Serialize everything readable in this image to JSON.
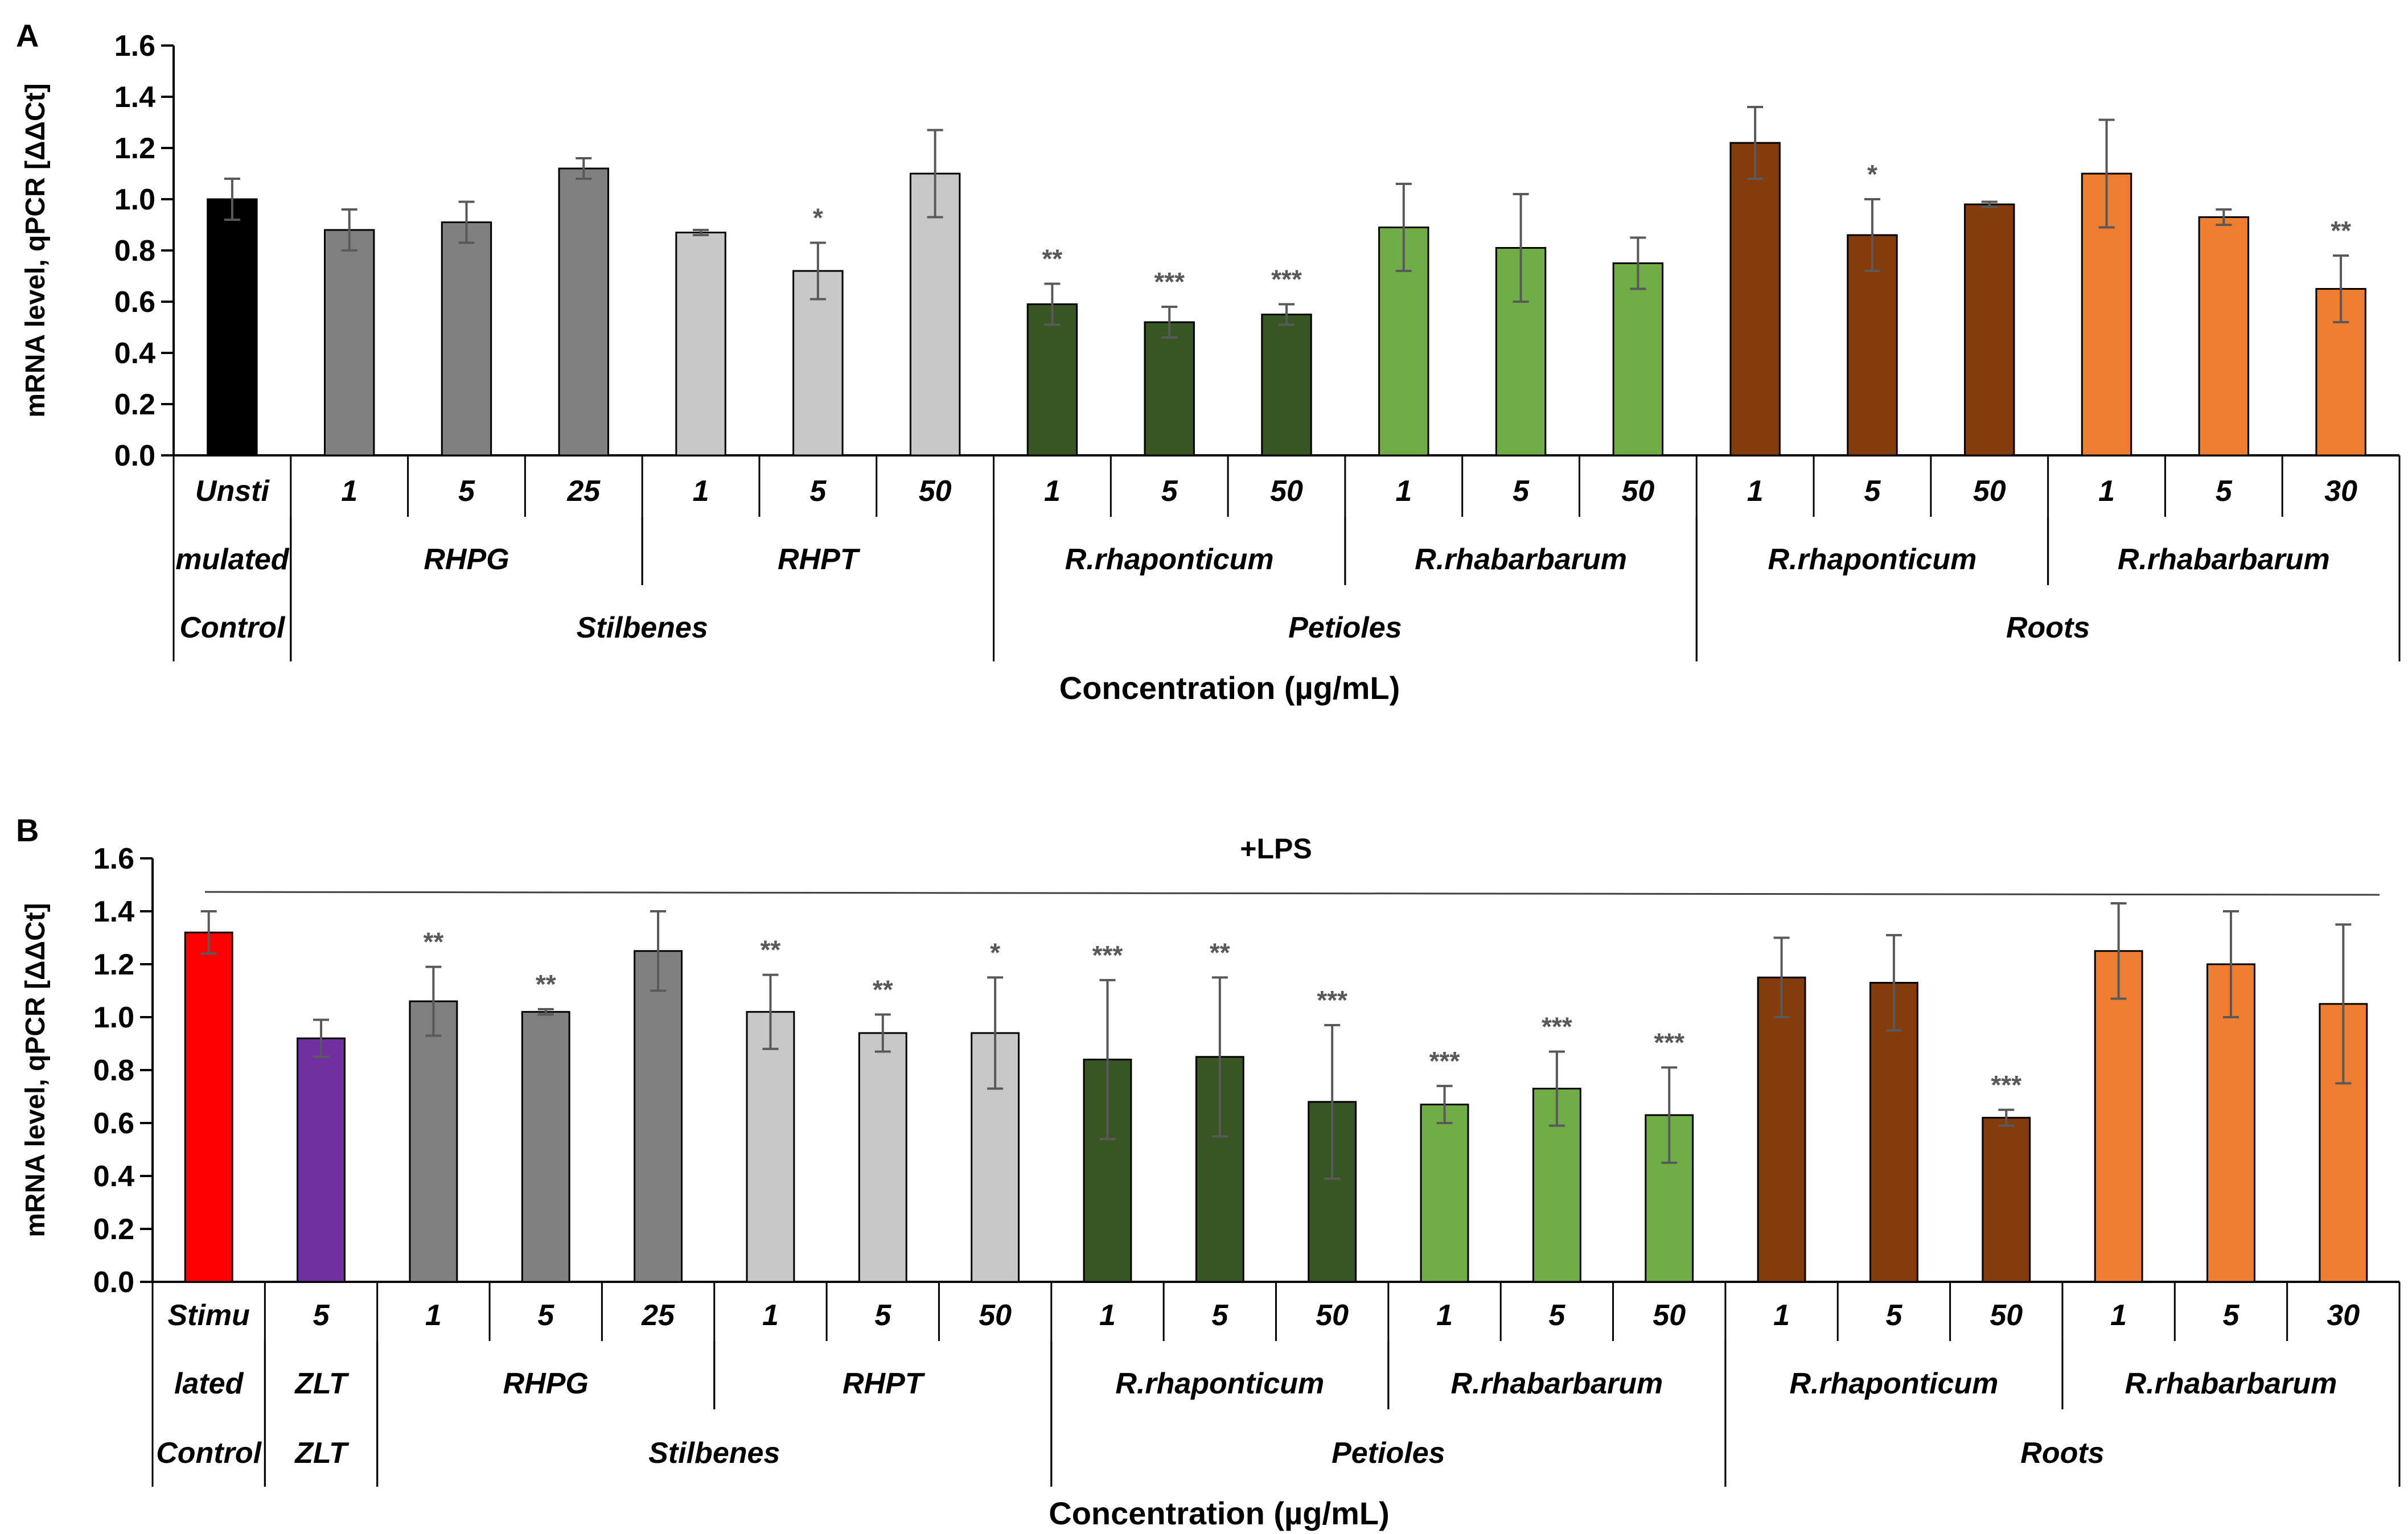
{
  "chart_data": [
    {
      "panel": "A",
      "type": "bar",
      "ylabel": "mRNA level, qPCR [ΔΔCt]",
      "xlabel": "Concentration (µg/mL)",
      "ylim": [
        0,
        1.6
      ],
      "yticks": [
        "0.0",
        "0.2",
        "0.4",
        "0.6",
        "0.8",
        "1.0",
        "1.2",
        "1.4",
        "1.6"
      ],
      "header": "",
      "bars": [
        {
          "label": "Unsti",
          "value": 1.0,
          "err": 0.08,
          "sig": "",
          "color": "#000000"
        },
        {
          "label": "1",
          "value": 0.88,
          "err": 0.08,
          "sig": "",
          "color": "#808080"
        },
        {
          "label": "5",
          "value": 0.91,
          "err": 0.08,
          "sig": "",
          "color": "#808080"
        },
        {
          "label": "25",
          "value": 1.12,
          "err": 0.04,
          "sig": "",
          "color": "#808080"
        },
        {
          "label": "1",
          "value": 0.87,
          "err": 0.01,
          "sig": "",
          "color": "#c8c8c8"
        },
        {
          "label": "5",
          "value": 0.72,
          "err": 0.11,
          "sig": "*",
          "color": "#c8c8c8"
        },
        {
          "label": "50",
          "value": 1.1,
          "err": 0.17,
          "sig": "",
          "color": "#c8c8c8"
        },
        {
          "label": "1",
          "value": 0.59,
          "err": 0.08,
          "sig": "**",
          "color": "#375623"
        },
        {
          "label": "5",
          "value": 0.52,
          "err": 0.06,
          "sig": "***",
          "color": "#375623"
        },
        {
          "label": "50",
          "value": 0.55,
          "err": 0.04,
          "sig": "***",
          "color": "#375623"
        },
        {
          "label": "1",
          "value": 0.89,
          "err": 0.17,
          "sig": "",
          "color": "#70ad47"
        },
        {
          "label": "5",
          "value": 0.81,
          "err": 0.21,
          "sig": "",
          "color": "#70ad47"
        },
        {
          "label": "50",
          "value": 0.75,
          "err": 0.1,
          "sig": "",
          "color": "#70ad47"
        },
        {
          "label": "1",
          "value": 1.22,
          "err": 0.14,
          "sig": "",
          "color": "#843c0c"
        },
        {
          "label": "5",
          "value": 0.86,
          "err": 0.14,
          "sig": "*",
          "color": "#843c0c"
        },
        {
          "label": "50",
          "value": 0.98,
          "err": 0.01,
          "sig": "",
          "color": "#843c0c"
        },
        {
          "label": "1",
          "value": 1.1,
          "err": 0.21,
          "sig": "",
          "color": "#ed7d31"
        },
        {
          "label": "5",
          "value": 0.93,
          "err": 0.03,
          "sig": "",
          "color": "#ed7d31"
        },
        {
          "label": "30",
          "value": 0.65,
          "err": 0.13,
          "sig": "**",
          "color": "#ed7d31"
        }
      ],
      "row2": [
        {
          "text": "mulated",
          "from": 0,
          "to": 1
        },
        {
          "text": "RHPG",
          "from": 1,
          "to": 4
        },
        {
          "text": "RHPT",
          "from": 4,
          "to": 7
        },
        {
          "text": "R.rhaponticum",
          "from": 7,
          "to": 10
        },
        {
          "text": "R.rhabarbarum",
          "from": 10,
          "to": 13
        },
        {
          "text": "R.rhaponticum",
          "from": 13,
          "to": 16
        },
        {
          "text": "R.rhabarbarum",
          "from": 16,
          "to": 19
        }
      ],
      "row3": [
        {
          "text": "Control",
          "from": 0,
          "to": 1
        },
        {
          "text": "Stilbenes",
          "from": 1,
          "to": 7
        },
        {
          "text": "Petioles",
          "from": 7,
          "to": 13
        },
        {
          "text": "Roots",
          "from": 13,
          "to": 19
        }
      ]
    },
    {
      "panel": "B",
      "type": "bar",
      "ylabel": "mRNA level, qPCR [ΔΔCt]",
      "xlabel": "Concentration (µg/mL)",
      "ylim": [
        0,
        1.6
      ],
      "yticks": [
        "0.0",
        "0.2",
        "0.4",
        "0.6",
        "0.8",
        "1.0",
        "1.2",
        "1.4",
        "1.6"
      ],
      "header": "+LPS",
      "bars": [
        {
          "label": "Stimu",
          "value": 1.32,
          "err": 0.08,
          "sig": "",
          "color": "#ff0000"
        },
        {
          "label": "5",
          "value": 0.92,
          "err": 0.07,
          "sig": "",
          "color": "#7030a0"
        },
        {
          "label": "1",
          "value": 1.06,
          "err": 0.13,
          "sig": "**",
          "color": "#808080"
        },
        {
          "label": "5",
          "value": 1.02,
          "err": 0.01,
          "sig": "**",
          "color": "#808080"
        },
        {
          "label": "25",
          "value": 1.25,
          "err": 0.15,
          "sig": "",
          "color": "#808080"
        },
        {
          "label": "1",
          "value": 1.02,
          "err": 0.14,
          "sig": "**",
          "color": "#c8c8c8"
        },
        {
          "label": "5",
          "value": 0.94,
          "err": 0.07,
          "sig": "**",
          "color": "#c8c8c8"
        },
        {
          "label": "50",
          "value": 0.94,
          "err": 0.21,
          "sig": "*",
          "color": "#c8c8c8"
        },
        {
          "label": "1",
          "value": 0.84,
          "err": 0.3,
          "sig": "***",
          "color": "#375623"
        },
        {
          "label": "5",
          "value": 0.85,
          "err": 0.3,
          "sig": "**",
          "color": "#375623"
        },
        {
          "label": "50",
          "value": 0.68,
          "err": 0.29,
          "sig": "***",
          "color": "#375623"
        },
        {
          "label": "1",
          "value": 0.67,
          "err": 0.07,
          "sig": "***",
          "color": "#70ad47"
        },
        {
          "label": "5",
          "value": 0.73,
          "err": 0.14,
          "sig": "***",
          "color": "#70ad47"
        },
        {
          "label": "50",
          "value": 0.63,
          "err": 0.18,
          "sig": "***",
          "color": "#70ad47"
        },
        {
          "label": "1",
          "value": 1.15,
          "err": 0.15,
          "sig": "",
          "color": "#843c0c"
        },
        {
          "label": "5",
          "value": 1.13,
          "err": 0.18,
          "sig": "",
          "color": "#843c0c"
        },
        {
          "label": "50",
          "value": 0.62,
          "err": 0.03,
          "sig": "***",
          "color": "#843c0c"
        },
        {
          "label": "1",
          "value": 1.25,
          "err": 0.18,
          "sig": "",
          "color": "#ed7d31"
        },
        {
          "label": "5",
          "value": 1.2,
          "err": 0.2,
          "sig": "",
          "color": "#ed7d31"
        },
        {
          "label": "30",
          "value": 1.05,
          "err": 0.3,
          "sig": "",
          "color": "#ed7d31"
        }
      ],
      "row2": [
        {
          "text": "lated",
          "from": 0,
          "to": 1
        },
        {
          "text": "ZLT",
          "from": 1,
          "to": 2
        },
        {
          "text": "RHPG",
          "from": 2,
          "to": 5
        },
        {
          "text": "RHPT",
          "from": 5,
          "to": 8
        },
        {
          "text": "R.rhaponticum",
          "from": 8,
          "to": 11
        },
        {
          "text": "R.rhabarbarum",
          "from": 11,
          "to": 14
        },
        {
          "text": "R.rhaponticum",
          "from": 14,
          "to": 17
        },
        {
          "text": "R.rhabarbarum",
          "from": 17,
          "to": 20
        }
      ],
      "row3": [
        {
          "text": "Control",
          "from": 0,
          "to": 1
        },
        {
          "text": "ZLT",
          "from": 1,
          "to": 2
        },
        {
          "text": "Stilbenes",
          "from": 2,
          "to": 8
        },
        {
          "text": "Petioles",
          "from": 8,
          "to": 14
        },
        {
          "text": "Roots",
          "from": 14,
          "to": 20
        }
      ]
    }
  ]
}
